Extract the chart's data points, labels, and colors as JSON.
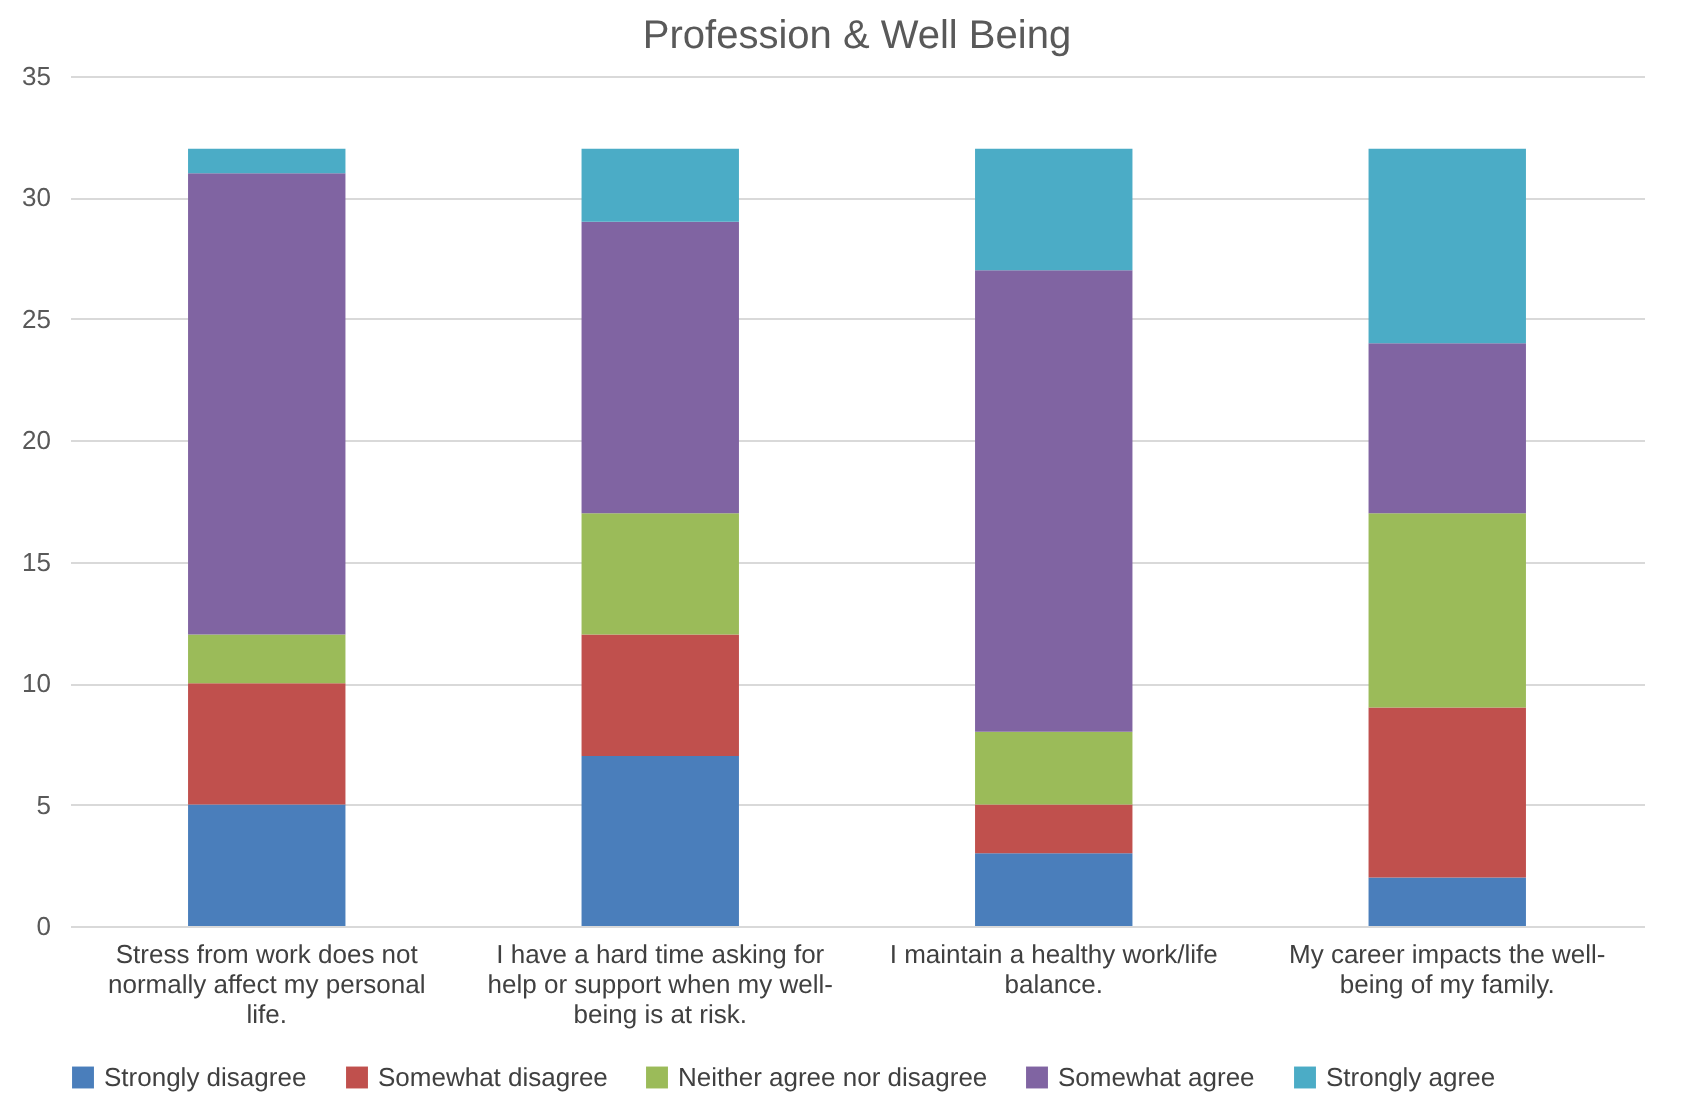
{
  "chart_data": {
    "type": "bar",
    "title": "Profession & Well Being",
    "stacked": true,
    "categories": [
      "Stress from work does not normally affect my personal life.",
      "I have a hard time asking for help or support when my well-being is at risk.",
      "I maintain a healthy work/life balance.",
      "My career impacts the well-being of my family."
    ],
    "series": [
      {
        "name": "Strongly disagree",
        "color": "#4a7ebb",
        "values": [
          5,
          7,
          3,
          2
        ]
      },
      {
        "name": "Somewhat disagree",
        "color": "#c0504d",
        "values": [
          5,
          5,
          2,
          7
        ]
      },
      {
        "name": "Neither agree nor disagree",
        "color": "#9bbb59",
        "values": [
          2,
          5,
          3,
          8
        ]
      },
      {
        "name": "Somewhat agree",
        "color": "#8064a2",
        "values": [
          19,
          12,
          19,
          7
        ]
      },
      {
        "name": "Strongly agree",
        "color": "#4bacc6",
        "values": [
          1,
          3,
          5,
          8
        ]
      }
    ],
    "ylim": [
      0,
      35
    ],
    "yticks": [
      0,
      5,
      10,
      15,
      20,
      25,
      30,
      35
    ],
    "grid": "y",
    "legend": "bottom"
  }
}
